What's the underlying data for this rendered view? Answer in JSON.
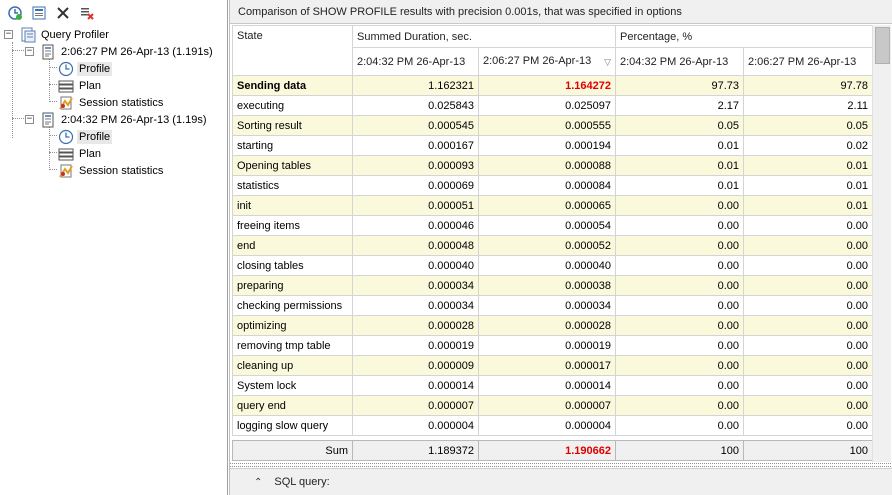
{
  "toolbar": {
    "buttons": [
      {
        "name": "new-profile-icon"
      },
      {
        "name": "compare-icon"
      },
      {
        "name": "delete-icon"
      },
      {
        "name": "clear-icon"
      }
    ]
  },
  "tree": {
    "root": "Query Profiler",
    "sessions": [
      {
        "label": "2:06:27 PM 26-Apr-13 (1.191s)",
        "children": [
          "Profile",
          "Plan",
          "Session statistics"
        ]
      },
      {
        "label": "2:04:32 PM 26-Apr-13 (1.19s)",
        "children": [
          "Profile",
          "Plan",
          "Session statistics"
        ]
      }
    ],
    "selected": "Profile"
  },
  "caption": "Comparison of SHOW PROFILE results with precision 0.001s, that was specified in options",
  "grid": {
    "headers": {
      "state": "State",
      "duration": "Summed Duration, sec.",
      "percentage": "Percentage, %",
      "sub": [
        "2:04:32 PM 26-Apr-13",
        "2:06:27 PM 26-Apr-13",
        "2:04:32 PM 26-Apr-13",
        "2:06:27 PM 26-Apr-13"
      ]
    },
    "rows": [
      {
        "state": "Sending data",
        "d1": "1.162321",
        "d2": "1.164272",
        "p1": "97.73",
        "p2": "97.78"
      },
      {
        "state": "executing",
        "d1": "0.025843",
        "d2": "0.025097",
        "p1": "2.17",
        "p2": "2.11"
      },
      {
        "state": "Sorting result",
        "d1": "0.000545",
        "d2": "0.000555",
        "p1": "0.05",
        "p2": "0.05"
      },
      {
        "state": "starting",
        "d1": "0.000167",
        "d2": "0.000194",
        "p1": "0.01",
        "p2": "0.02"
      },
      {
        "state": "Opening tables",
        "d1": "0.000093",
        "d2": "0.000088",
        "p1": "0.01",
        "p2": "0.01"
      },
      {
        "state": "statistics",
        "d1": "0.000069",
        "d2": "0.000084",
        "p1": "0.01",
        "p2": "0.01"
      },
      {
        "state": "init",
        "d1": "0.000051",
        "d2": "0.000065",
        "p1": "0.00",
        "p2": "0.01"
      },
      {
        "state": "freeing items",
        "d1": "0.000046",
        "d2": "0.000054",
        "p1": "0.00",
        "p2": "0.00"
      },
      {
        "state": "end",
        "d1": "0.000048",
        "d2": "0.000052",
        "p1": "0.00",
        "p2": "0.00"
      },
      {
        "state": "closing tables",
        "d1": "0.000040",
        "d2": "0.000040",
        "p1": "0.00",
        "p2": "0.00"
      },
      {
        "state": "preparing",
        "d1": "0.000034",
        "d2": "0.000038",
        "p1": "0.00",
        "p2": "0.00"
      },
      {
        "state": "checking permissions",
        "d1": "0.000034",
        "d2": "0.000034",
        "p1": "0.00",
        "p2": "0.00"
      },
      {
        "state": "optimizing",
        "d1": "0.000028",
        "d2": "0.000028",
        "p1": "0.00",
        "p2": "0.00"
      },
      {
        "state": "removing tmp table",
        "d1": "0.000019",
        "d2": "0.000019",
        "p1": "0.00",
        "p2": "0.00"
      },
      {
        "state": "cleaning up",
        "d1": "0.000009",
        "d2": "0.000017",
        "p1": "0.00",
        "p2": "0.00"
      },
      {
        "state": "System lock",
        "d1": "0.000014",
        "d2": "0.000014",
        "p1": "0.00",
        "p2": "0.00"
      },
      {
        "state": "query end",
        "d1": "0.000007",
        "d2": "0.000007",
        "p1": "0.00",
        "p2": "0.00"
      },
      {
        "state": "logging slow query",
        "d1": "0.000004",
        "d2": "0.000004",
        "p1": "0.00",
        "p2": "0.00"
      }
    ],
    "sum": {
      "label": "Sum",
      "d1": "1.189372",
      "d2": "1.190662",
      "p1": "100",
      "p2": "100"
    }
  },
  "sql_bar": {
    "label": "SQL query:"
  },
  "colors": {
    "highlight": "#e00000",
    "odd_row": "#fbf9dc"
  }
}
